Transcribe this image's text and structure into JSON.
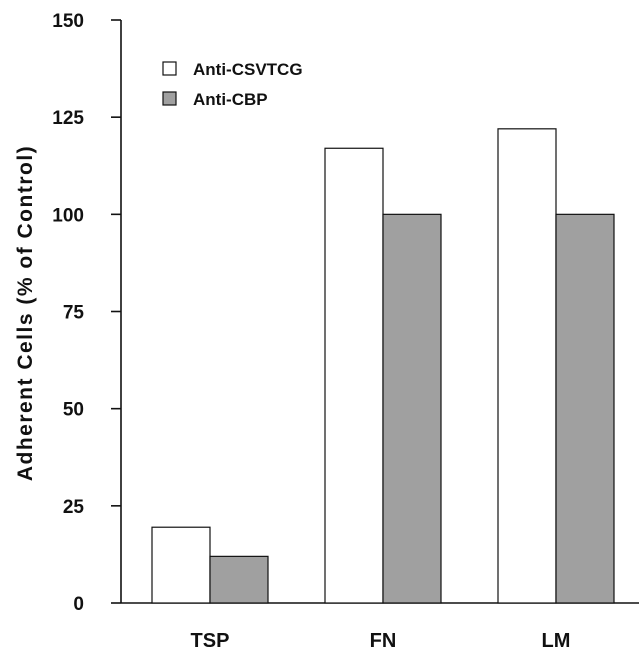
{
  "chart_data": {
    "type": "bar",
    "categories": [
      "TSP",
      "FN",
      "LM"
    ],
    "series": [
      {
        "name": "Anti-CSVTCG",
        "values": [
          19.5,
          117,
          122
        ],
        "color": "#ffffff"
      },
      {
        "name": "Anti-CBP",
        "values": [
          12,
          100,
          100
        ],
        "color": "#a0a0a0"
      }
    ],
    "title": "",
    "xlabel": "",
    "ylabel": "Adherent Cells (% of Control)",
    "ylim": [
      0,
      150
    ],
    "yticks": [
      0,
      25,
      50,
      75,
      100,
      125,
      150
    ],
    "grid": false,
    "legend_position": "top-left"
  }
}
